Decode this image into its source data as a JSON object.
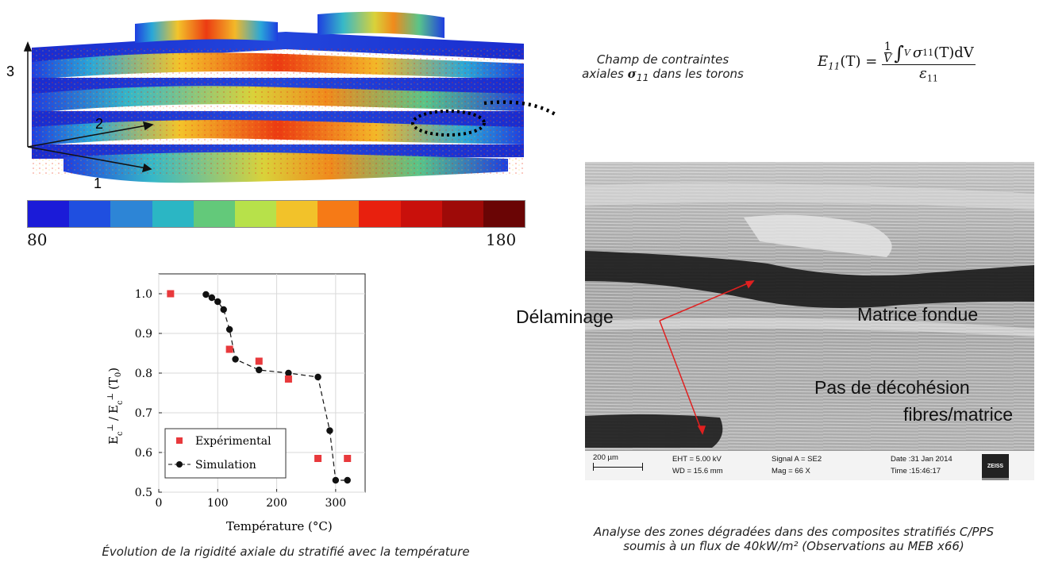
{
  "model": {
    "axis_labels": [
      "1",
      "2",
      "3"
    ],
    "colorbar": {
      "min": "80",
      "max": "180",
      "colors": [
        "#1b1bd8",
        "#1f4fe0",
        "#2d85d6",
        "#2bb6c4",
        "#63c97a",
        "#b7e14a",
        "#f2c22a",
        "#f67a16",
        "#e8200e",
        "#c9100b",
        "#9e0a08",
        "#6a0505"
      ]
    },
    "caption_line1": "Champ de contraintes",
    "caption_line2_pre": "axiales ",
    "caption_sigma": "σ",
    "caption_sigma_sub": "11",
    "caption_line2_post": " dans les torons",
    "formula": {
      "lhs": "E",
      "lhs_sub": "11",
      "lhs_arg": "(T) =",
      "num_one": "1",
      "num_v": "V",
      "integral": "∫",
      "int_sub": "V",
      "sigma": "σ",
      "sigma_sub": "11",
      "sigma_arg": "(T)dV",
      "den": "ε",
      "den_sub": "11"
    }
  },
  "chart_data": {
    "type": "scatter",
    "xlabel": "Température (°C)",
    "ylabel": "E_c^⊥ / E_c^⊥ (T_0)",
    "ylabel_parts": {
      "e1": "E",
      "sup": "⊥",
      "sub": "c",
      "slash": "/",
      "t": "(T",
      "t_sub": "0",
      "close": ")"
    },
    "xlim": [
      0,
      350
    ],
    "ylim": [
      0.5,
      1.05
    ],
    "xticks": [
      0,
      100,
      200,
      300
    ],
    "yticks": [
      0.5,
      0.6,
      0.7,
      0.8,
      0.9,
      1.0
    ],
    "xtick_labels": [
      "0",
      "100",
      "200",
      "300"
    ],
    "ytick_labels": [
      "0.5",
      "0.6",
      "0.7",
      "0.8",
      "0.9",
      "1.0"
    ],
    "grid": true,
    "legend_position": "bottom-left",
    "series": [
      {
        "name": "Expérimental",
        "marker": "square",
        "color": "#e8393c",
        "x": [
          20,
          120,
          170,
          220,
          270,
          320
        ],
        "y": [
          1.0,
          0.86,
          0.83,
          0.785,
          0.585,
          0.585
        ]
      },
      {
        "name": "Simulation",
        "marker": "circle",
        "line": "dashed",
        "color": "#111111",
        "x": [
          80,
          90,
          100,
          110,
          120,
          130,
          170,
          220,
          270,
          290,
          300,
          320
        ],
        "y": [
          0.998,
          0.99,
          0.98,
          0.96,
          0.91,
          0.835,
          0.808,
          0.8,
          0.79,
          0.655,
          0.53,
          0.53
        ]
      }
    ]
  },
  "chart_caption": "Évolution de la rigidité axiale du stratifié avec la température",
  "sem": {
    "label_delam": "Délaminage",
    "label_matrice": "Matrice fondue",
    "label_pas1": "Pas de décohésion",
    "label_pas2": "fibres/matrice",
    "scalebar_label": "200 µm",
    "eht": "EHT =  5.00 kV",
    "wd": "WD = 15.6 mm",
    "signal": "Signal A = SE2",
    "mag": "Mag =     66 X",
    "date": "Date :31 Jan 2014",
    "time": "Time :15:46:17",
    "brand": "ZEISS",
    "caption_line1": "Analyse des zones dégradées dans des composites stratifiés C/PPS",
    "caption_line2": "soumis à un flux de 40kW/m² (Observations au MEB x66)"
  }
}
